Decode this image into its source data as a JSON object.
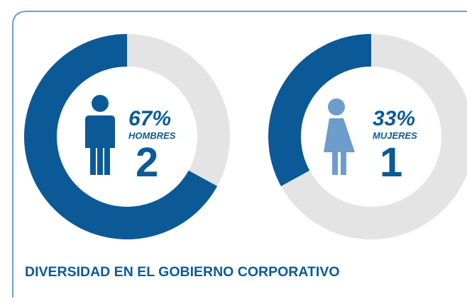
{
  "title": "DIVERSIDAD EN EL GOBIERNO CORPORATIVO",
  "chart_data": [
    {
      "type": "donut",
      "label": "HOMBRES",
      "values": [
        67
      ],
      "value_labels": [
        "67%"
      ],
      "count": "2",
      "color": "#0b5a97",
      "rest_color": "#e4e4e4"
    },
    {
      "type": "donut",
      "label": "MUJERES",
      "values": [
        33
      ],
      "value_labels": [
        "33%"
      ],
      "count": "1",
      "color": "#0b5a97",
      "rest_color": "#e4e4e4"
    }
  ]
}
